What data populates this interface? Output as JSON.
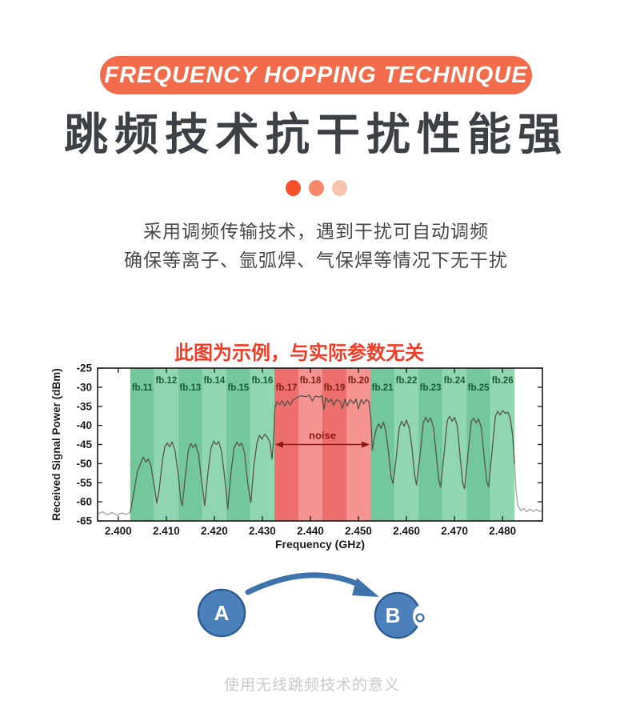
{
  "banner": {
    "label": "FREQUENCY HOPPING TECHNIQUE",
    "bg": "#f26b4a",
    "text_color": "#ffffff"
  },
  "heading": {
    "text": "跳频技术抗干扰性能强",
    "color": "#3d4044"
  },
  "dots": {
    "colors": [
      "#f4512a",
      "#f6886a",
      "#f9c3ab"
    ]
  },
  "intro": {
    "line1": "采用调频传输技术，遇到干扰可自动调频",
    "line2": "确保等离子、氩弧焊、气保焊等情况下无干扰",
    "color": "#4a4a4a"
  },
  "chart_note": {
    "text": "此图为示例，与实际参数无关",
    "color": "#f43b28"
  },
  "chart_data": {
    "type": "line",
    "xlabel": "Frequency (GHz)",
    "ylabel": "Received Signal Power (dBm)",
    "xlim": [
      2.3957,
      2.4883
    ],
    "ylim": [
      -65,
      -25
    ],
    "x_ticks": [
      2.4,
      2.41,
      2.42,
      2.43,
      2.44,
      2.45,
      2.46,
      2.47,
      2.48
    ],
    "x_tick_labels": [
      "2.400",
      "2.410",
      "2.420",
      "2.430",
      "2.440",
      "2.450",
      "2.460",
      "2.470",
      "2.480"
    ],
    "y_ticks": [
      -25,
      -30,
      -35,
      -40,
      -45,
      -50,
      -55,
      -60,
      -65
    ],
    "axis_color": "#1a1a1a",
    "bands": [
      {
        "label": "fb.11",
        "start": 2.4025,
        "end": 2.4075,
        "fill": "#72c79b",
        "row": "low",
        "label_color": "#1b5c36"
      },
      {
        "label": "fb.12",
        "start": 2.4075,
        "end": 2.4125,
        "fill": "#90d7b1",
        "row": "high",
        "label_color": "#1b5c36"
      },
      {
        "label": "fb.13",
        "start": 2.4125,
        "end": 2.4175,
        "fill": "#72c79b",
        "row": "low",
        "label_color": "#1b5c36"
      },
      {
        "label": "fb.14",
        "start": 2.4175,
        "end": 2.4225,
        "fill": "#90d7b1",
        "row": "high",
        "label_color": "#1b5c36"
      },
      {
        "label": "fb.15",
        "start": 2.4225,
        "end": 2.4275,
        "fill": "#72c79b",
        "row": "low",
        "label_color": "#1b5c36"
      },
      {
        "label": "fb.16",
        "start": 2.4275,
        "end": 2.4325,
        "fill": "#90d7b1",
        "row": "high",
        "label_color": "#1b5c36"
      },
      {
        "label": "fb.17",
        "start": 2.4325,
        "end": 2.4375,
        "fill": "#ed6f6d",
        "row": "low",
        "label_color": "#7e1f14"
      },
      {
        "label": "fb.18",
        "start": 2.4375,
        "end": 2.4425,
        "fill": "#f59391",
        "row": "high",
        "label_color": "#7e1f14"
      },
      {
        "label": "fb.19",
        "start": 2.4425,
        "end": 2.4475,
        "fill": "#ed6f6d",
        "row": "low",
        "label_color": "#7e1f14"
      },
      {
        "label": "fb.20",
        "start": 2.4475,
        "end": 2.4525,
        "fill": "#f59391",
        "row": "high",
        "label_color": "#7e1f14"
      },
      {
        "label": "fb.21",
        "start": 2.4525,
        "end": 2.4575,
        "fill": "#72c79b",
        "row": "low",
        "label_color": "#1b5c36"
      },
      {
        "label": "fb.22",
        "start": 2.4575,
        "end": 2.4625,
        "fill": "#90d7b1",
        "row": "high",
        "label_color": "#1b5c36"
      },
      {
        "label": "fb.23",
        "start": 2.4625,
        "end": 2.4675,
        "fill": "#72c79b",
        "row": "low",
        "label_color": "#1b5c36"
      },
      {
        "label": "fb.24",
        "start": 2.4675,
        "end": 2.4725,
        "fill": "#90d7b1",
        "row": "high",
        "label_color": "#1b5c36"
      },
      {
        "label": "fb.25",
        "start": 2.4725,
        "end": 2.4775,
        "fill": "#72c79b",
        "row": "low",
        "label_color": "#1b5c36"
      },
      {
        "label": "fb.26",
        "start": 2.4775,
        "end": 2.4825,
        "fill": "#90d7b1",
        "row": "high",
        "label_color": "#1b5c36"
      }
    ],
    "annotation": {
      "text": "noise",
      "x_start": 2.4325,
      "x_end": 2.4525,
      "y": -45,
      "color": "#8b1a10"
    },
    "series": [
      {
        "name": "noise-floor-left",
        "color": "#a3a3a3",
        "points": [
          [
            2.3957,
            -63.2
          ],
          [
            2.3967,
            -62.6
          ],
          [
            2.3977,
            -63.4
          ],
          [
            2.3987,
            -62.8
          ],
          [
            2.3997,
            -63.5
          ],
          [
            2.4007,
            -62.9
          ],
          [
            2.4017,
            -63.3
          ],
          [
            2.4025,
            -62.8
          ]
        ]
      },
      {
        "name": "received-signal",
        "color": "#56554b",
        "points": [
          [
            2.4025,
            -62.8
          ],
          [
            2.4032,
            -58
          ],
          [
            2.404,
            -52
          ],
          [
            2.4048,
            -49.5
          ],
          [
            2.4052,
            -48.3
          ],
          [
            2.4058,
            -49.6
          ],
          [
            2.4063,
            -48.8
          ],
          [
            2.4068,
            -50.5
          ],
          [
            2.4075,
            -56
          ],
          [
            2.408,
            -60.3
          ],
          [
            2.4085,
            -57
          ],
          [
            2.4092,
            -49
          ],
          [
            2.4097,
            -45.6
          ],
          [
            2.4102,
            -44.6
          ],
          [
            2.4107,
            -45.6
          ],
          [
            2.4112,
            -44.3
          ],
          [
            2.4118,
            -46.5
          ],
          [
            2.4125,
            -53
          ],
          [
            2.413,
            -59.5
          ],
          [
            2.4133,
            -61
          ],
          [
            2.414,
            -53
          ],
          [
            2.4146,
            -46.5
          ],
          [
            2.4151,
            -44.7
          ],
          [
            2.4156,
            -45.8
          ],
          [
            2.4161,
            -44.9
          ],
          [
            2.4167,
            -47.5
          ],
          [
            2.4174,
            -55
          ],
          [
            2.418,
            -61
          ],
          [
            2.4187,
            -52
          ],
          [
            2.4193,
            -46
          ],
          [
            2.4199,
            -44.1
          ],
          [
            2.4204,
            -45
          ],
          [
            2.4209,
            -44.2
          ],
          [
            2.4215,
            -46.8
          ],
          [
            2.4222,
            -54
          ],
          [
            2.4228,
            -61.8
          ],
          [
            2.4235,
            -52
          ],
          [
            2.4241,
            -46
          ],
          [
            2.4247,
            -44.4
          ],
          [
            2.4252,
            -45.3
          ],
          [
            2.4257,
            -44.6
          ],
          [
            2.4263,
            -47.2
          ],
          [
            2.427,
            -55.5
          ],
          [
            2.4276,
            -60.2
          ],
          [
            2.4283,
            -50
          ],
          [
            2.4289,
            -44.5
          ],
          [
            2.4294,
            -42.6
          ],
          [
            2.4299,
            -43.6
          ],
          [
            2.4305,
            -42.3
          ],
          [
            2.4311,
            -43.2
          ],
          [
            2.4316,
            -44.5
          ],
          [
            2.432,
            -48.8
          ],
          [
            2.4322,
            -45.8
          ],
          [
            2.4324,
            -42
          ],
          [
            2.4326,
            -35.5
          ],
          [
            2.433,
            -33.8
          ],
          [
            2.4336,
            -34.6
          ],
          [
            2.4341,
            -33.5
          ],
          [
            2.4347,
            -34.9
          ],
          [
            2.4352,
            -33.6
          ],
          [
            2.4358,
            -34.7
          ],
          [
            2.4364,
            -33.3
          ],
          [
            2.4372,
            -32.7
          ],
          [
            2.438,
            -32.2
          ],
          [
            2.439,
            -32.5
          ],
          [
            2.4398,
            -32.1
          ],
          [
            2.4404,
            -33.6
          ],
          [
            2.441,
            -32.3
          ],
          [
            2.4418,
            -32.6
          ],
          [
            2.4424,
            -32.2
          ],
          [
            2.4428,
            -35.9
          ],
          [
            2.4432,
            -32.7
          ],
          [
            2.4438,
            -33.9
          ],
          [
            2.4444,
            -33.1
          ],
          [
            2.4448,
            -34.8
          ],
          [
            2.4454,
            -33.3
          ],
          [
            2.4462,
            -33.7
          ],
          [
            2.4467,
            -35.6
          ],
          [
            2.4472,
            -33.1
          ],
          [
            2.4477,
            -34.9
          ],
          [
            2.4483,
            -33.2
          ],
          [
            2.449,
            -34.3
          ],
          [
            2.4495,
            -33.1
          ],
          [
            2.45,
            -35.7
          ],
          [
            2.4506,
            -33.2
          ],
          [
            2.4511,
            -34.3
          ],
          [
            2.4517,
            -33.2
          ],
          [
            2.4522,
            -33.8
          ],
          [
            2.4526,
            -38
          ],
          [
            2.4529,
            -46.5
          ],
          [
            2.4532,
            -44
          ],
          [
            2.4537,
            -41
          ],
          [
            2.4542,
            -39.6
          ],
          [
            2.4547,
            -40.8
          ],
          [
            2.4552,
            -39.2
          ],
          [
            2.4557,
            -41.5
          ],
          [
            2.4563,
            -47.5
          ],
          [
            2.4568,
            -53.5
          ],
          [
            2.4572,
            -55.2
          ],
          [
            2.4579,
            -48
          ],
          [
            2.4585,
            -40.5
          ],
          [
            2.459,
            -38.9
          ],
          [
            2.4595,
            -40.2
          ],
          [
            2.46,
            -38.6
          ],
          [
            2.4606,
            -40.8
          ],
          [
            2.4612,
            -46.5
          ],
          [
            2.4617,
            -53
          ],
          [
            2.4621,
            -55.6
          ],
          [
            2.4629,
            -47
          ],
          [
            2.4635,
            -39.3
          ],
          [
            2.464,
            -37.9
          ],
          [
            2.4645,
            -39.1
          ],
          [
            2.465,
            -38
          ],
          [
            2.4656,
            -40.3
          ],
          [
            2.4662,
            -47.5
          ],
          [
            2.4667,
            -54
          ],
          [
            2.4671,
            -56.2
          ],
          [
            2.4679,
            -46.5
          ],
          [
            2.4685,
            -38.7
          ],
          [
            2.469,
            -37.6
          ],
          [
            2.4695,
            -38.9
          ],
          [
            2.47,
            -37.9
          ],
          [
            2.4706,
            -40.2
          ],
          [
            2.4712,
            -48.5
          ],
          [
            2.4717,
            -55
          ],
          [
            2.4721,
            -56.6
          ],
          [
            2.4729,
            -46.5
          ],
          [
            2.4735,
            -39
          ],
          [
            2.474,
            -38.1
          ],
          [
            2.4745,
            -39.3
          ],
          [
            2.475,
            -38.3
          ],
          [
            2.4756,
            -40.6
          ],
          [
            2.4762,
            -48.5
          ],
          [
            2.4767,
            -54.5
          ],
          [
            2.4771,
            -56.1
          ],
          [
            2.4779,
            -45.5
          ],
          [
            2.4785,
            -37.7
          ],
          [
            2.479,
            -36.3
          ],
          [
            2.4795,
            -37.3
          ],
          [
            2.48,
            -36.1
          ],
          [
            2.4806,
            -36.9
          ],
          [
            2.4811,
            -36.5
          ],
          [
            2.4816,
            -38.2
          ],
          [
            2.4821,
            -42.5
          ],
          [
            2.4825,
            -50
          ]
        ]
      },
      {
        "name": "noise-floor-right",
        "color": "#a3a3a3",
        "points": [
          [
            2.4825,
            -50
          ],
          [
            2.4828,
            -57
          ],
          [
            2.4832,
            -61
          ],
          [
            2.4838,
            -62.3
          ],
          [
            2.4844,
            -61.7
          ],
          [
            2.485,
            -62.6
          ],
          [
            2.4857,
            -61.9
          ],
          [
            2.4864,
            -62.5
          ],
          [
            2.4871,
            -62
          ],
          [
            2.4878,
            -62.6
          ],
          [
            2.4883,
            -62.1
          ]
        ]
      }
    ]
  },
  "hop_diagram": {
    "node_a": "A",
    "node_b": "B",
    "node_fill": "#4c80ba",
    "node_stroke": "#2f5e95",
    "arrow_color": "#3e72ab"
  },
  "footer": {
    "text": "使用无线跳频技术的意义",
    "color": "#c9c9c9"
  }
}
